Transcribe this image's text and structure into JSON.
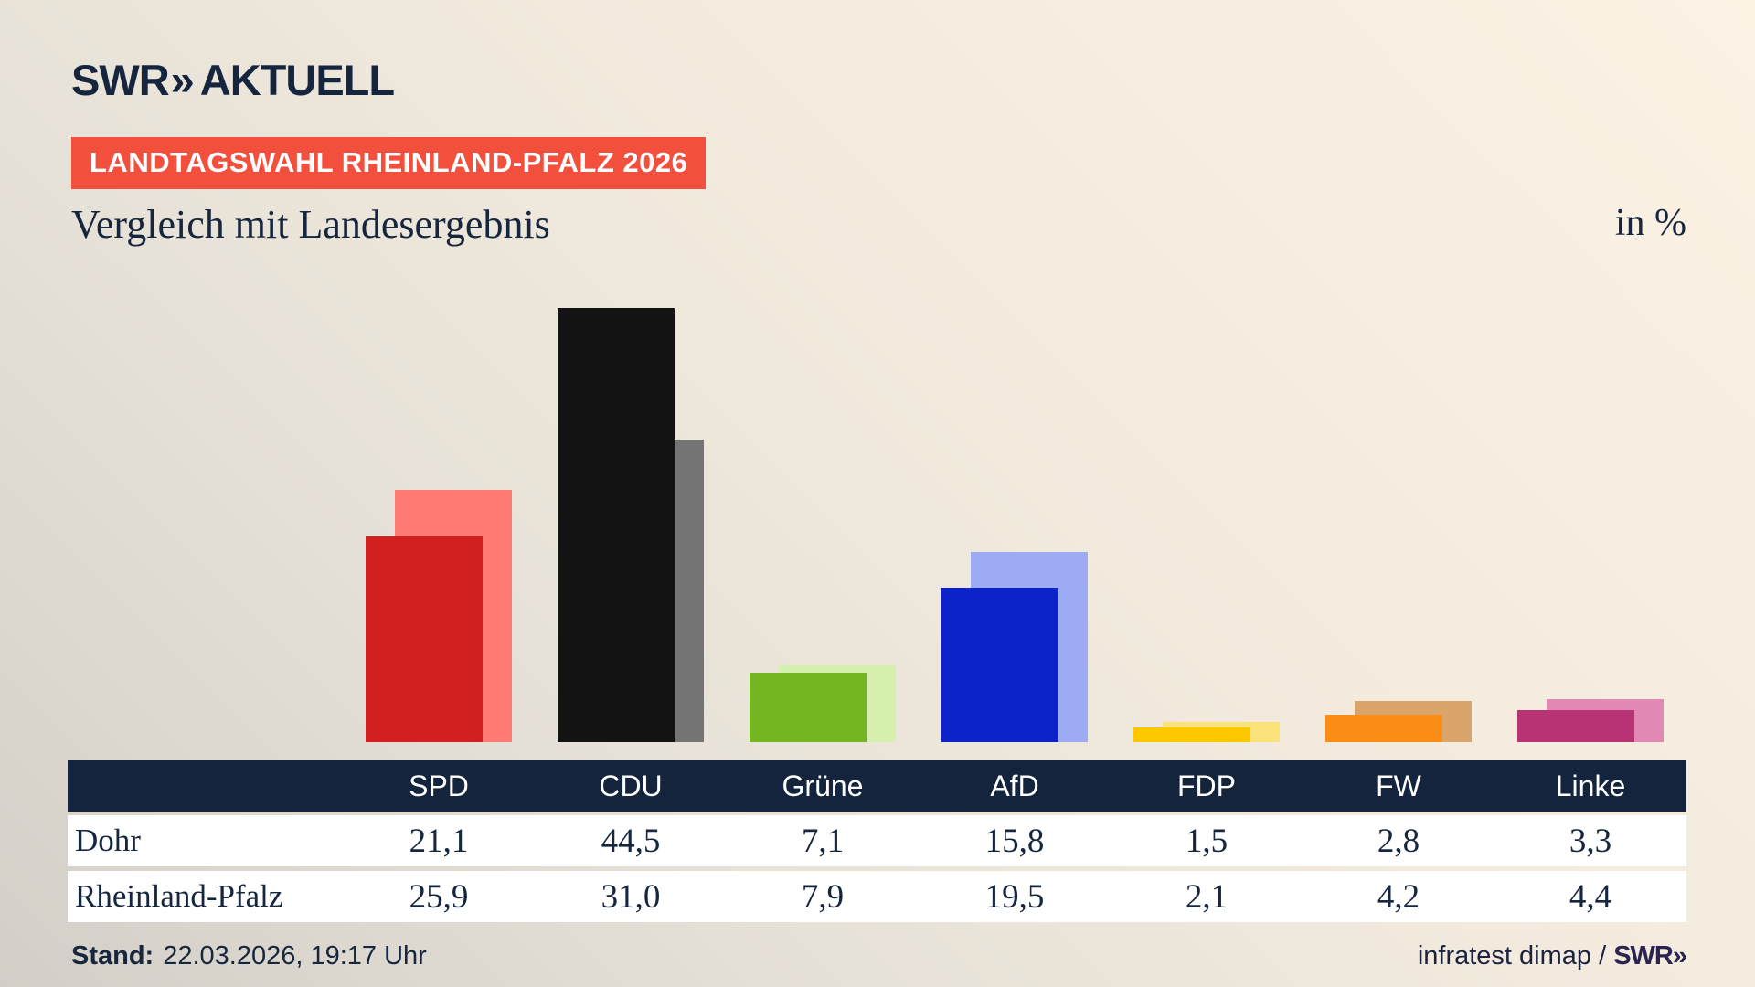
{
  "brand": {
    "logo_swr": "SWR",
    "logo_chevrons": "»",
    "logo_suffix": "AKTUELL"
  },
  "header": {
    "badge": "LANDTAGSWAHL RHEINLAND-PFALZ 2026",
    "title": "Vergleich mit Landesergebnis",
    "unit_label": "in %"
  },
  "chart_data": {
    "type": "bar",
    "title": "Vergleich mit Landesergebnis",
    "unit": "in %",
    "categories": [
      "SPD",
      "CDU",
      "Grüne",
      "AfD",
      "FDP",
      "FW",
      "Linke"
    ],
    "series": [
      {
        "name": "Dohr",
        "role": "front",
        "values": [
          21.1,
          44.5,
          7.1,
          15.8,
          1.5,
          2.8,
          3.3
        ],
        "colors": [
          "#d31f1f",
          "#131313",
          "#73b622",
          "#0b23c8",
          "#fdc800",
          "#fb8c14",
          "#b83374"
        ]
      },
      {
        "name": "Rheinland-Pfalz",
        "role": "back",
        "values": [
          25.9,
          31.0,
          7.9,
          19.5,
          2.1,
          4.2,
          4.4
        ],
        "colors": [
          "#ff7a73",
          "#747474",
          "#d6f0ae",
          "#9dabf5",
          "#fbe278",
          "#daa56b",
          "#e188b5"
        ]
      }
    ],
    "ylim": [
      0,
      47
    ],
    "grid": false,
    "legend": "none (values shown in table below)"
  },
  "table": {
    "header": [
      "SPD",
      "CDU",
      "Grüne",
      "AfD",
      "FDP",
      "FW",
      "Linke"
    ],
    "rows": [
      {
        "label": "Dohr",
        "values": [
          "21,1",
          "44,5",
          "7,1",
          "15,8",
          "1,5",
          "2,8",
          "3,3"
        ]
      },
      {
        "label": "Rheinland-Pfalz",
        "values": [
          "25,9",
          "31,0",
          "7,9",
          "19,5",
          "2,1",
          "4,2",
          "4,4"
        ]
      }
    ]
  },
  "footer": {
    "stand_label": "Stand:",
    "stand_value": "22.03.2026, 19:17 Uhr",
    "credit_prefix": "infratest dimap / ",
    "credit_logo": "SWR»"
  },
  "colors": {
    "badge_red": "#f2503d",
    "navy_text": "#16263e",
    "table_header_bg": "#14243c",
    "row_bg": "#ffffff",
    "background_top_right": "#fbf2e4",
    "background_bottom_left": "#d3cfc8"
  }
}
